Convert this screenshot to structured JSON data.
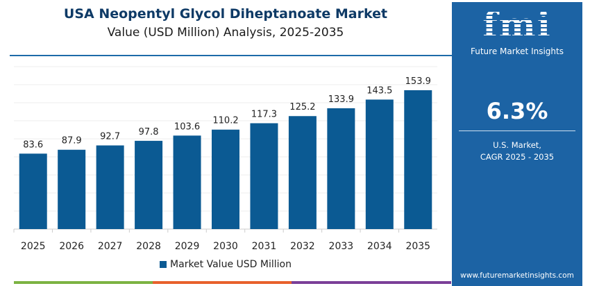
{
  "chart_data": {
    "type": "bar",
    "title": "USA Neopentyl Glycol Diheptanoate Market",
    "subtitle": "Value (USD Million) Analysis, 2025-2035",
    "categories": [
      "2025",
      "2026",
      "2027",
      "2028",
      "2029",
      "2030",
      "2031",
      "2032",
      "2033",
      "2034",
      "2035"
    ],
    "series": [
      {
        "name": "Market Value USD Million",
        "values": [
          83.6,
          87.9,
          92.7,
          97.8,
          103.6,
          110.2,
          117.3,
          125.2,
          133.9,
          143.5,
          153.9
        ]
      }
    ],
    "ylim": [
      0,
      180
    ],
    "grid": true,
    "legend": "bottom",
    "colors": {
      "bar": "#0b5a93",
      "panel": "#1c63a4"
    }
  },
  "panel": {
    "logo_text": "fmi",
    "logo_sub": "Future Market Insights",
    "cagr": "6.3%",
    "label_line1": "U.S. Market,",
    "label_line2": "CAGR 2025 - 2035",
    "url": "www.futuremarketinsights.com"
  }
}
